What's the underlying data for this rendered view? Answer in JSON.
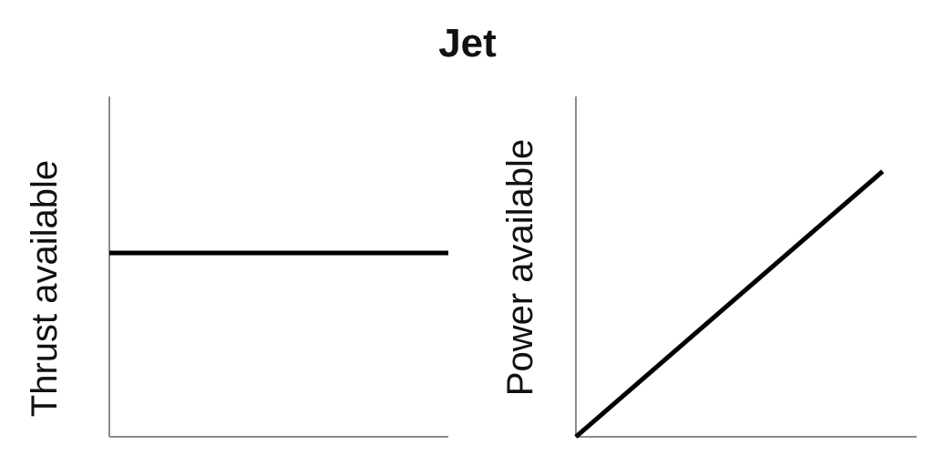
{
  "title": "Jet",
  "chart_data": [
    {
      "type": "line",
      "title": "",
      "xlabel": "",
      "ylabel": "Thrust available",
      "xlim": [
        0,
        1
      ],
      "ylim": [
        0,
        1
      ],
      "grid": false,
      "series": [
        {
          "x": [
            0,
            1
          ],
          "y": [
            0.54,
            0.54
          ],
          "color": "#000000"
        }
      ]
    },
    {
      "type": "line",
      "title": "",
      "xlabel": "",
      "ylabel": "Power available",
      "xlim": [
        0,
        1
      ],
      "ylim": [
        0,
        1
      ],
      "grid": false,
      "series": [
        {
          "x": [
            0,
            0.9
          ],
          "y": [
            0,
            0.78
          ],
          "color": "#000000"
        }
      ]
    }
  ]
}
